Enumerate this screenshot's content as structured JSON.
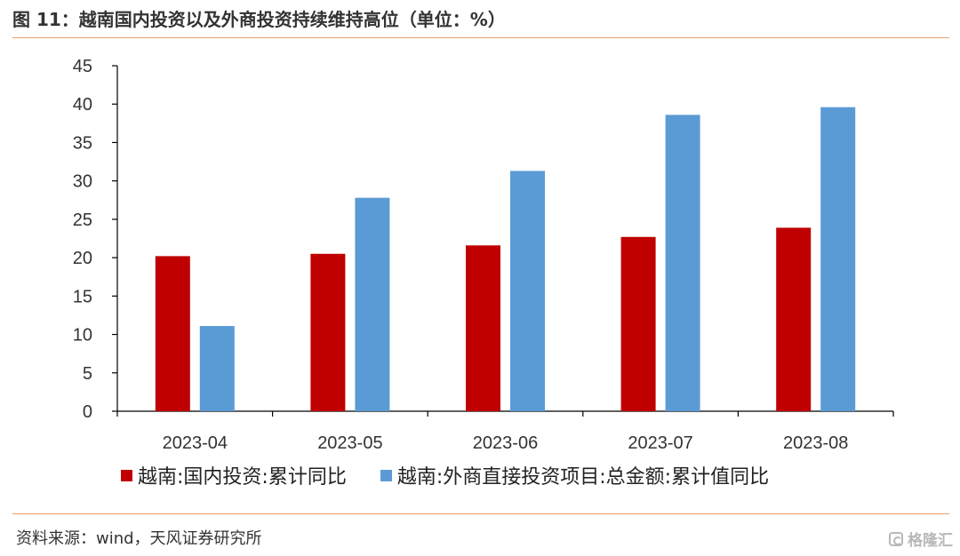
{
  "title": "图 11：越南国内投资以及外商投资持续维持高位（单位：%）",
  "source": "资料来源：wind，天风证券研究所",
  "watermark": {
    "text": "格隆汇",
    "icon": "gelonghui-logo-icon"
  },
  "colors": {
    "accent_rule": "#e8a06a",
    "series_domestic": "#c00000",
    "series_fdi": "#5b9bd5",
    "axis": "#000000"
  },
  "chart_data": {
    "type": "bar",
    "title": "",
    "xlabel": "",
    "ylabel": "",
    "categories": [
      "2023-04",
      "2023-05",
      "2023-06",
      "2023-07",
      "2023-08"
    ],
    "series": [
      {
        "name": "越南:国内投资:累计同比",
        "color": "#c00000",
        "values": [
          20.2,
          20.5,
          21.6,
          22.7,
          23.9
        ]
      },
      {
        "name": "越南:外商直接投资项目:总金额:累计值同比",
        "color": "#5b9bd5",
        "values": [
          11.1,
          27.8,
          31.3,
          38.6,
          39.6
        ]
      }
    ],
    "ylim": [
      0,
      45
    ],
    "yticks": [
      0,
      5,
      10,
      15,
      20,
      25,
      30,
      35,
      40,
      45
    ],
    "grid": false,
    "legend_position": "bottom"
  }
}
